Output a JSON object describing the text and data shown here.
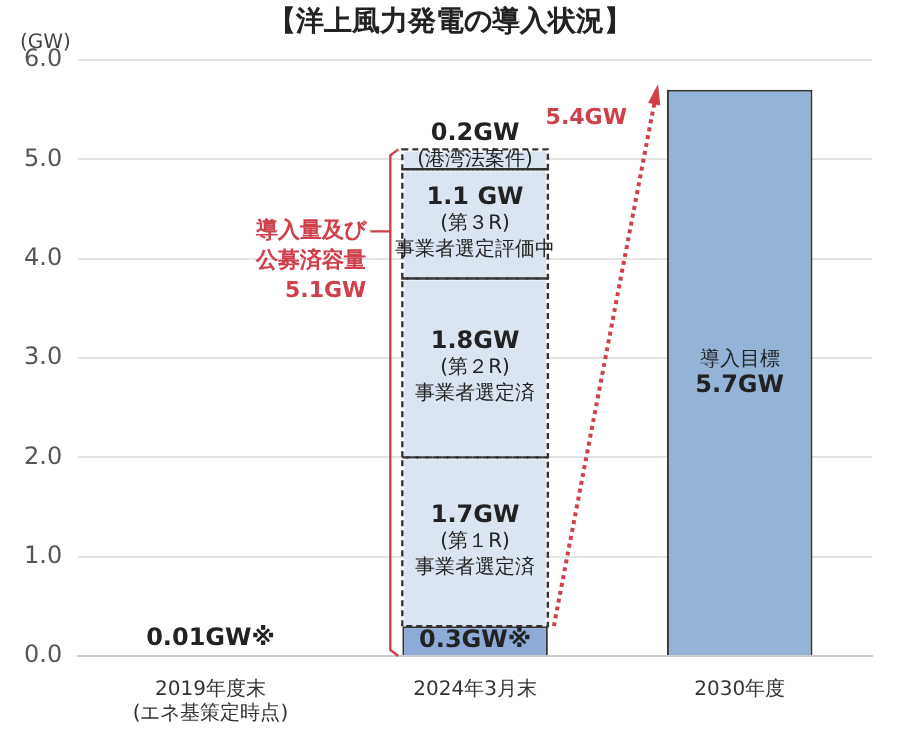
{
  "chart_data": {
    "type": "bar",
    "title": "【洋上風力発電の導入状況】",
    "ylabel": "(GW)",
    "categories": [
      "2019年度末\n(エネ基策定時点)",
      "2024年3月末",
      "2030年度"
    ],
    "stacked": true,
    "series": [
      {
        "colors": [
          "#333333",
          "#8eaad6",
          null
        ],
        "values": [
          0.01,
          0.3,
          null
        ],
        "value_labels": [
          "0.01GW※",
          "0.3GW※",
          null
        ]
      },
      {
        "color": "#dbe5f1",
        "values": [
          null,
          1.7,
          null
        ],
        "line_style": "dashed",
        "value_labels": [
          null,
          "1.7GW\n(第１R)\n事業者選定済",
          null
        ]
      },
      {
        "color": "#dbe5f1",
        "values": [
          null,
          1.8,
          null
        ],
        "line_style": "dashed",
        "value_labels": [
          null,
          "1.8GW\n(第２R)\n事業者選定済",
          null
        ]
      },
      {
        "color": "#dbe5f1",
        "values": [
          null,
          1.1,
          null
        ],
        "line_style": "dashed",
        "value_labels": [
          null,
          "1.1 GW\n(第３R)\n事業者選定評価中",
          null
        ]
      },
      {
        "color": "#dbe5f1",
        "values": [
          null,
          0.2,
          null
        ],
        "line_style": "dashed",
        "value_labels": [
          null,
          "0.2GW\n(港湾法案件)",
          null
        ]
      },
      {
        "color": "#95b3d7",
        "values": [
          null,
          null,
          5.7
        ],
        "value_labels": [
          null,
          null,
          "導入目標\n5.7GW"
        ]
      }
    ],
    "ylim": [
      0,
      6
    ],
    "yticks": [
      {
        "value": 0,
        "label": "0.0"
      },
      {
        "value": 1,
        "label": "1.0"
      },
      {
        "value": 2,
        "label": "2.0"
      },
      {
        "value": 3,
        "label": "3.0"
      },
      {
        "value": 4,
        "label": "4.0"
      },
      {
        "value": 5,
        "label": "5.0"
      },
      {
        "value": 6,
        "label": "6.0"
      }
    ],
    "grid": "y",
    "legend": false,
    "annotations": [
      "導入量及び公募済容量\n5.1GW",
      "5.4GW"
    ]
  }
}
